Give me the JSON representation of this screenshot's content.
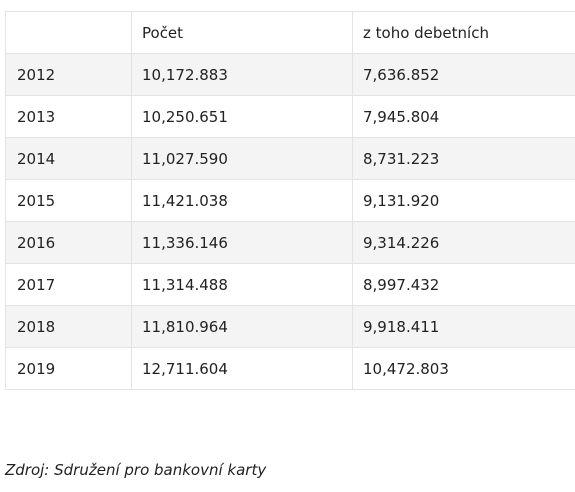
{
  "table": {
    "headers": [
      "",
      "Počet",
      "z toho debetních"
    ],
    "rows": [
      [
        "2012",
        "10,172.883",
        "7,636.852"
      ],
      [
        "2013",
        "10,250.651",
        "7,945.804"
      ],
      [
        "2014",
        "11,027.590",
        "8,731.223"
      ],
      [
        "2015",
        "11,421.038",
        "9,131.920"
      ],
      [
        "2016",
        "11,336.146",
        "9,314.226"
      ],
      [
        "2017",
        "11,314.488",
        "8,997.432"
      ],
      [
        "2018",
        "11,810.964",
        "9,918.411"
      ],
      [
        "2019",
        "12,711.604",
        "10,472.803"
      ]
    ]
  },
  "source": "Zdroj: Sdružení pro bankovní karty"
}
